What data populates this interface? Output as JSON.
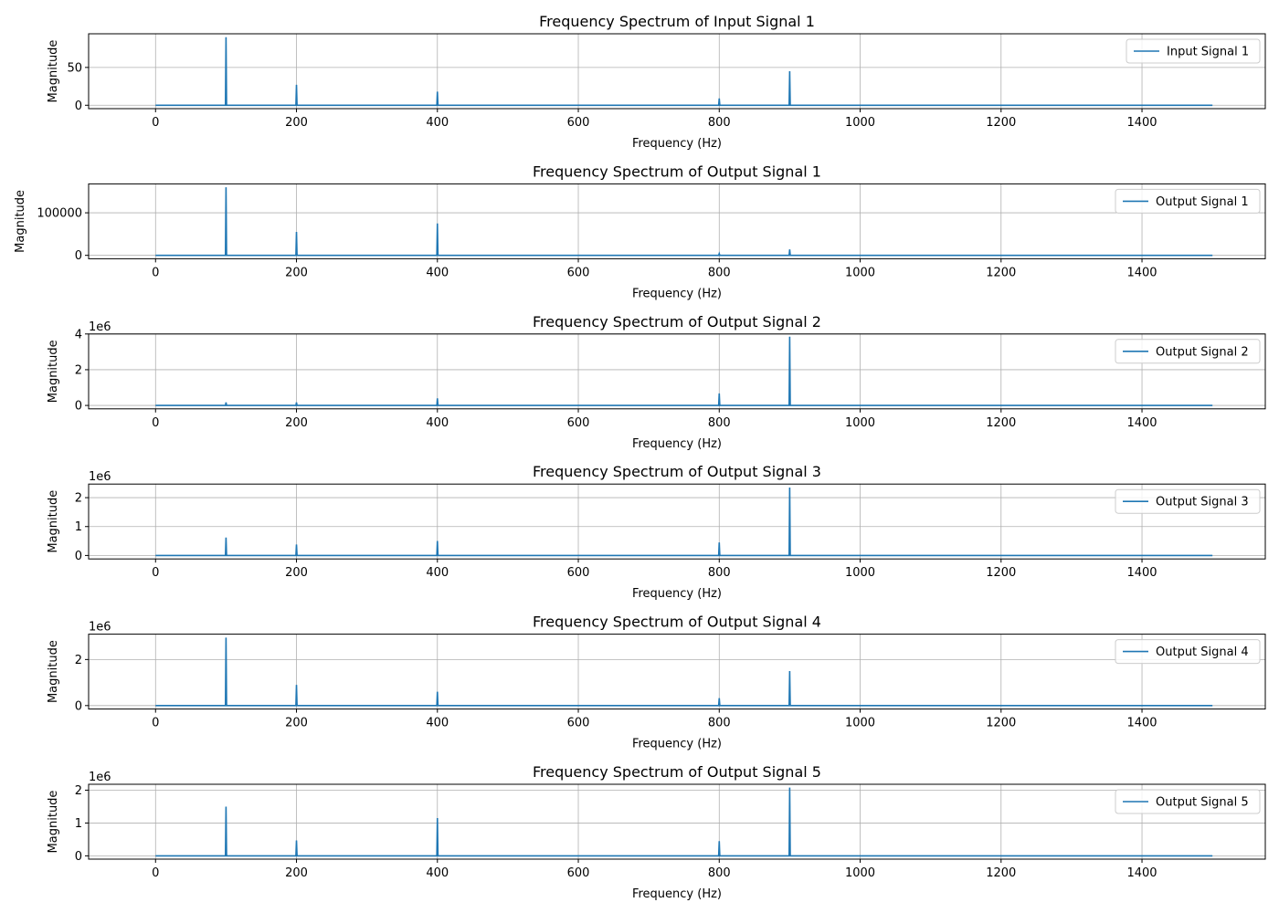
{
  "colors": {
    "series": "#1f77b4",
    "grid": "#b0b0b0",
    "axes": "#000000",
    "legend_border": "#cccccc"
  },
  "chart_data": [
    {
      "type": "line",
      "title": "Frequency Spectrum of Input Signal 1",
      "xlabel": "Frequency (Hz)",
      "ylabel": "Magnitude",
      "xlim": [
        -95,
        1575
      ],
      "ylim": [
        -4.5,
        94.5
      ],
      "x_ticks": [
        0,
        200,
        400,
        600,
        800,
        1000,
        1200,
        1400
      ],
      "y_ticks": [
        0,
        50
      ],
      "y_tick_labels": [
        "0",
        "50"
      ],
      "offset_text": "",
      "grid": true,
      "legend_position": "top-right",
      "series": [
        {
          "name": "Input Signal 1",
          "baseline": 0,
          "x_range": [
            0,
            1500
          ],
          "peaks": [
            {
              "x": 100,
              "y": 90
            },
            {
              "x": 200,
              "y": 27
            },
            {
              "x": 400,
              "y": 18
            },
            {
              "x": 800,
              "y": 9
            },
            {
              "x": 900,
              "y": 45
            }
          ]
        }
      ]
    },
    {
      "type": "line",
      "title": "Frequency Spectrum of Output Signal 1",
      "xlabel": "Frequency (Hz)",
      "ylabel": "Magnitude",
      "xlim": [
        -95,
        1575
      ],
      "ylim": [
        -8000,
        168000
      ],
      "x_ticks": [
        0,
        200,
        400,
        600,
        800,
        1000,
        1200,
        1400
      ],
      "y_ticks": [
        0,
        100000
      ],
      "y_tick_labels": [
        "0",
        "100000"
      ],
      "offset_text": "",
      "grid": true,
      "legend_position": "top-right",
      "series": [
        {
          "name": "Output Signal 1",
          "baseline": 0,
          "x_range": [
            0,
            1500
          ],
          "peaks": [
            {
              "x": 100,
              "y": 160000
            },
            {
              "x": 200,
              "y": 55000
            },
            {
              "x": 400,
              "y": 75000
            },
            {
              "x": 800,
              "y": 4000
            },
            {
              "x": 900,
              "y": 14000
            }
          ]
        }
      ]
    },
    {
      "type": "line",
      "title": "Frequency Spectrum of Output Signal 2",
      "xlabel": "Frequency (Hz)",
      "ylabel": "Magnitude",
      "xlim": [
        -95,
        1575
      ],
      "ylim": [
        -0.19,
        4.0
      ],
      "x_ticks": [
        0,
        200,
        400,
        600,
        800,
        1000,
        1200,
        1400
      ],
      "y_ticks": [
        0,
        2,
        4
      ],
      "y_tick_labels": [
        "0",
        "2",
        "4"
      ],
      "offset_text": "1e6",
      "grid": true,
      "legend_position": "top-right",
      "series": [
        {
          "name": "Output Signal 2",
          "baseline": 0,
          "x_range": [
            0,
            1500
          ],
          "peaks": [
            {
              "x": 100,
              "y": 0.17
            },
            {
              "x": 200,
              "y": 0.17
            },
            {
              "x": 400,
              "y": 0.4
            },
            {
              "x": 800,
              "y": 0.67
            },
            {
              "x": 900,
              "y": 3.85
            }
          ]
        }
      ]
    },
    {
      "type": "line",
      "title": "Frequency Spectrum of Output Signal 3",
      "xlabel": "Frequency (Hz)",
      "ylabel": "Magnitude",
      "xlim": [
        -95,
        1575
      ],
      "ylim": [
        -0.12,
        2.47
      ],
      "x_ticks": [
        0,
        200,
        400,
        600,
        800,
        1000,
        1200,
        1400
      ],
      "y_ticks": [
        0,
        1,
        2
      ],
      "y_tick_labels": [
        "0",
        "1",
        "2"
      ],
      "offset_text": "1e6",
      "grid": true,
      "legend_position": "top-right",
      "series": [
        {
          "name": "Output Signal 3",
          "baseline": 0,
          "x_range": [
            0,
            1500
          ],
          "peaks": [
            {
              "x": 100,
              "y": 0.62
            },
            {
              "x": 200,
              "y": 0.38
            },
            {
              "x": 400,
              "y": 0.5
            },
            {
              "x": 800,
              "y": 0.45
            },
            {
              "x": 900,
              "y": 2.35
            }
          ]
        }
      ]
    },
    {
      "type": "line",
      "title": "Frequency Spectrum of Output Signal 4",
      "xlabel": "Frequency (Hz)",
      "ylabel": "Magnitude",
      "xlim": [
        -95,
        1575
      ],
      "ylim": [
        -0.15,
        3.1
      ],
      "x_ticks": [
        0,
        200,
        400,
        600,
        800,
        1000,
        1200,
        1400
      ],
      "y_ticks": [
        0,
        2
      ],
      "y_tick_labels": [
        "0",
        "2"
      ],
      "offset_text": "1e6",
      "grid": true,
      "legend_position": "top-right",
      "series": [
        {
          "name": "Output Signal 4",
          "baseline": 0,
          "x_range": [
            0,
            1500
          ],
          "peaks": [
            {
              "x": 100,
              "y": 2.95
            },
            {
              "x": 200,
              "y": 0.9
            },
            {
              "x": 400,
              "y": 0.6
            },
            {
              "x": 800,
              "y": 0.32
            },
            {
              "x": 900,
              "y": 1.5
            }
          ]
        }
      ]
    },
    {
      "type": "line",
      "title": "Frequency Spectrum of Output Signal 5",
      "xlabel": "Frequency (Hz)",
      "ylabel": "Magnitude",
      "xlim": [
        -95,
        1575
      ],
      "ylim": [
        -0.1,
        2.18
      ],
      "x_ticks": [
        0,
        200,
        400,
        600,
        800,
        1000,
        1200,
        1400
      ],
      "y_ticks": [
        0,
        1,
        2
      ],
      "y_tick_labels": [
        "0",
        "1",
        "2"
      ],
      "offset_text": "1e6",
      "grid": true,
      "legend_position": "top-right",
      "series": [
        {
          "name": "Output Signal 5",
          "baseline": 0,
          "x_range": [
            0,
            1500
          ],
          "peaks": [
            {
              "x": 100,
              "y": 1.5
            },
            {
              "x": 200,
              "y": 0.47
            },
            {
              "x": 400,
              "y": 1.15
            },
            {
              "x": 800,
              "y": 0.45
            },
            {
              "x": 900,
              "y": 2.08
            }
          ]
        }
      ]
    }
  ]
}
